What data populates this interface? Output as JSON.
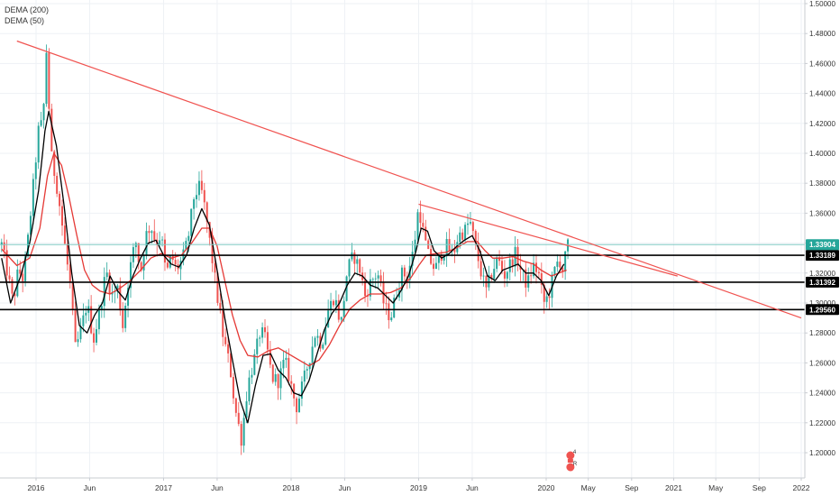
{
  "legend": [
    {
      "label": "DEMA (200)",
      "color": "#000000"
    },
    {
      "label": "DEMA (50)",
      "color": "#e53935"
    }
  ],
  "chart_data": {
    "type": "candlestick",
    "y_axis": {
      "min": 1.18,
      "max": 1.5,
      "ticks": [
        1.2,
        1.22,
        1.24,
        1.26,
        1.28,
        1.3,
        1.32,
        1.34,
        1.36,
        1.38,
        1.4,
        1.42,
        1.44,
        1.46,
        1.48,
        1.5
      ],
      "tick_labels": [
        "1.20000",
        "1.22000",
        "1.24000",
        "1.26000",
        "1.28000",
        "1.30000",
        "1.32000",
        "1.34000",
        "1.36000",
        "1.38000",
        "1.40000",
        "1.42000",
        "1.44000",
        "1.46000",
        "1.48000",
        "1.50000"
      ],
      "side": "right"
    },
    "x_axis": {
      "ticks": [
        {
          "label": "2016",
          "t": 2016.0
        },
        {
          "label": "Jun",
          "t": 2016.42
        },
        {
          "label": "2017",
          "t": 2017.0
        },
        {
          "label": "Jun",
          "t": 2017.42
        },
        {
          "label": "2018",
          "t": 2018.0
        },
        {
          "label": "Jun",
          "t": 2018.42
        },
        {
          "label": "2019",
          "t": 2019.0
        },
        {
          "label": "Jun",
          "t": 2019.42
        },
        {
          "label": "2020",
          "t": 2020.0
        },
        {
          "label": "May",
          "t": 2020.33
        },
        {
          "label": "Sep",
          "t": 2020.67
        },
        {
          "label": "2021",
          "t": 2021.0
        },
        {
          "label": "May",
          "t": 2021.33
        },
        {
          "label": "Sep",
          "t": 2021.67
        },
        {
          "label": "2022",
          "t": 2022.0
        }
      ],
      "range": [
        2015.73,
        2022.05
      ]
    },
    "price_path": [
      [
        2015.73,
        1.339
      ],
      [
        2015.78,
        1.318
      ],
      [
        2015.82,
        1.3
      ],
      [
        2015.86,
        1.322
      ],
      [
        2015.9,
        1.316
      ],
      [
        2015.94,
        1.345
      ],
      [
        2015.98,
        1.38
      ],
      [
        2016.03,
        1.425
      ],
      [
        2016.05,
        1.412
      ],
      [
        2016.08,
        1.47
      ],
      [
        2016.12,
        1.398
      ],
      [
        2016.17,
        1.375
      ],
      [
        2016.22,
        1.342
      ],
      [
        2016.27,
        1.31
      ],
      [
        2016.31,
        1.268
      ],
      [
        2016.36,
        1.285
      ],
      [
        2016.4,
        1.3
      ],
      [
        2016.45,
        1.275
      ],
      [
        2016.5,
        1.295
      ],
      [
        2016.55,
        1.322
      ],
      [
        2016.59,
        1.305
      ],
      [
        2016.64,
        1.31
      ],
      [
        2016.68,
        1.285
      ],
      [
        2016.73,
        1.32
      ],
      [
        2016.78,
        1.342
      ],
      [
        2016.82,
        1.32
      ],
      [
        2016.86,
        1.345
      ],
      [
        2016.9,
        1.352
      ],
      [
        2016.94,
        1.34
      ],
      [
        2016.98,
        1.346
      ],
      [
        2017.02,
        1.318
      ],
      [
        2017.06,
        1.332
      ],
      [
        2017.1,
        1.322
      ],
      [
        2017.15,
        1.33
      ],
      [
        2017.19,
        1.342
      ],
      [
        2017.24,
        1.372
      ],
      [
        2017.29,
        1.378
      ],
      [
        2017.33,
        1.36
      ],
      [
        2017.38,
        1.33
      ],
      [
        2017.42,
        1.305
      ],
      [
        2017.47,
        1.276
      ],
      [
        2017.52,
        1.258
      ],
      [
        2017.56,
        1.23
      ],
      [
        2017.61,
        1.209
      ],
      [
        2017.66,
        1.245
      ],
      [
        2017.71,
        1.262
      ],
      [
        2017.76,
        1.282
      ],
      [
        2017.8,
        1.275
      ],
      [
        2017.85,
        1.25
      ],
      [
        2017.9,
        1.248
      ],
      [
        2017.95,
        1.262
      ],
      [
        2018.0,
        1.245
      ],
      [
        2018.04,
        1.23
      ],
      [
        2018.09,
        1.245
      ],
      [
        2018.14,
        1.262
      ],
      [
        2018.19,
        1.28
      ],
      [
        2018.24,
        1.272
      ],
      [
        2018.29,
        1.295
      ],
      [
        2018.34,
        1.305
      ],
      [
        2018.39,
        1.285
      ],
      [
        2018.44,
        1.322
      ],
      [
        2018.49,
        1.332
      ],
      [
        2018.54,
        1.322
      ],
      [
        2018.58,
        1.305
      ],
      [
        2018.63,
        1.315
      ],
      [
        2018.68,
        1.32
      ],
      [
        2018.73,
        1.298
      ],
      [
        2018.78,
        1.29
      ],
      [
        2018.82,
        1.305
      ],
      [
        2018.87,
        1.32
      ],
      [
        2018.91,
        1.318
      ],
      [
        2018.96,
        1.335
      ],
      [
        2019.0,
        1.365
      ],
      [
        2019.04,
        1.345
      ],
      [
        2019.08,
        1.33
      ],
      [
        2019.13,
        1.322
      ],
      [
        2019.17,
        1.332
      ],
      [
        2019.22,
        1.338
      ],
      [
        2019.27,
        1.332
      ],
      [
        2019.31,
        1.345
      ],
      [
        2019.36,
        1.348
      ],
      [
        2019.4,
        1.355
      ],
      [
        2019.44,
        1.34
      ],
      [
        2019.49,
        1.32
      ],
      [
        2019.53,
        1.308
      ],
      [
        2019.58,
        1.322
      ],
      [
        2019.62,
        1.33
      ],
      [
        2019.67,
        1.318
      ],
      [
        2019.71,
        1.325
      ],
      [
        2019.76,
        1.333
      ],
      [
        2019.8,
        1.322
      ],
      [
        2019.85,
        1.312
      ],
      [
        2019.9,
        1.325
      ],
      [
        2019.94,
        1.32
      ],
      [
        2019.98,
        1.3
      ],
      [
        2020.02,
        1.305
      ],
      [
        2020.06,
        1.32
      ],
      [
        2020.1,
        1.33
      ],
      [
        2020.13,
        1.322
      ],
      [
        2020.17,
        1.339
      ]
    ],
    "dema_200": [
      [
        2015.73,
        1.33
      ],
      [
        2015.8,
        1.3
      ],
      [
        2015.88,
        1.318
      ],
      [
        2015.95,
        1.34
      ],
      [
        2016.02,
        1.375
      ],
      [
        2016.07,
        1.415
      ],
      [
        2016.1,
        1.428
      ],
      [
        2016.16,
        1.405
      ],
      [
        2016.22,
        1.365
      ],
      [
        2016.28,
        1.32
      ],
      [
        2016.34,
        1.285
      ],
      [
        2016.4,
        1.28
      ],
      [
        2016.46,
        1.292
      ],
      [
        2016.52,
        1.3
      ],
      [
        2016.58,
        1.318
      ],
      [
        2016.64,
        1.308
      ],
      [
        2016.7,
        1.302
      ],
      [
        2016.76,
        1.318
      ],
      [
        2016.82,
        1.33
      ],
      [
        2016.88,
        1.34
      ],
      [
        2016.94,
        1.342
      ],
      [
        2017.0,
        1.332
      ],
      [
        2017.06,
        1.326
      ],
      [
        2017.12,
        1.324
      ],
      [
        2017.18,
        1.332
      ],
      [
        2017.24,
        1.35
      ],
      [
        2017.3,
        1.363
      ],
      [
        2017.36,
        1.352
      ],
      [
        2017.42,
        1.322
      ],
      [
        2017.48,
        1.29
      ],
      [
        2017.54,
        1.262
      ],
      [
        2017.6,
        1.235
      ],
      [
        2017.66,
        1.22
      ],
      [
        2017.72,
        1.245
      ],
      [
        2017.78,
        1.265
      ],
      [
        2017.84,
        1.266
      ],
      [
        2017.9,
        1.255
      ],
      [
        2017.96,
        1.25
      ],
      [
        2018.02,
        1.24
      ],
      [
        2018.08,
        1.238
      ],
      [
        2018.14,
        1.248
      ],
      [
        2018.2,
        1.265
      ],
      [
        2018.26,
        1.282
      ],
      [
        2018.32,
        1.293
      ],
      [
        2018.38,
        1.3
      ],
      [
        2018.44,
        1.312
      ],
      [
        2018.5,
        1.32
      ],
      [
        2018.56,
        1.318
      ],
      [
        2018.62,
        1.312
      ],
      [
        2018.68,
        1.31
      ],
      [
        2018.74,
        1.305
      ],
      [
        2018.8,
        1.3
      ],
      [
        2018.86,
        1.308
      ],
      [
        2018.92,
        1.318
      ],
      [
        2018.98,
        1.335
      ],
      [
        2019.02,
        1.35
      ],
      [
        2019.07,
        1.348
      ],
      [
        2019.12,
        1.335
      ],
      [
        2019.18,
        1.33
      ],
      [
        2019.24,
        1.333
      ],
      [
        2019.3,
        1.338
      ],
      [
        2019.36,
        1.342
      ],
      [
        2019.42,
        1.345
      ],
      [
        2019.48,
        1.335
      ],
      [
        2019.54,
        1.318
      ],
      [
        2019.6,
        1.315
      ],
      [
        2019.66,
        1.322
      ],
      [
        2019.72,
        1.324
      ],
      [
        2019.78,
        1.326
      ],
      [
        2019.84,
        1.32
      ],
      [
        2019.9,
        1.32
      ],
      [
        2019.96,
        1.315
      ],
      [
        2020.02,
        1.305
      ],
      [
        2020.08,
        1.318
      ],
      [
        2020.14,
        1.326
      ]
    ],
    "dema_50": [
      [
        2015.73,
        1.336
      ],
      [
        2015.85,
        1.325
      ],
      [
        2015.95,
        1.33
      ],
      [
        2016.03,
        1.35
      ],
      [
        2016.09,
        1.385
      ],
      [
        2016.14,
        1.4
      ],
      [
        2016.2,
        1.392
      ],
      [
        2016.26,
        1.37
      ],
      [
        2016.32,
        1.345
      ],
      [
        2016.38,
        1.322
      ],
      [
        2016.44,
        1.312
      ],
      [
        2016.5,
        1.308
      ],
      [
        2016.58,
        1.306
      ],
      [
        2016.66,
        1.31
      ],
      [
        2016.74,
        1.315
      ],
      [
        2016.82,
        1.322
      ],
      [
        2016.9,
        1.33
      ],
      [
        2016.98,
        1.333
      ],
      [
        2017.06,
        1.33
      ],
      [
        2017.14,
        1.332
      ],
      [
        2017.22,
        1.34
      ],
      [
        2017.3,
        1.35
      ],
      [
        2017.36,
        1.35
      ],
      [
        2017.42,
        1.338
      ],
      [
        2017.48,
        1.315
      ],
      [
        2017.54,
        1.292
      ],
      [
        2017.6,
        1.275
      ],
      [
        2017.66,
        1.265
      ],
      [
        2017.74,
        1.264
      ],
      [
        2017.82,
        1.268
      ],
      [
        2017.9,
        1.27
      ],
      [
        2017.98,
        1.266
      ],
      [
        2018.06,
        1.262
      ],
      [
        2018.14,
        1.258
      ],
      [
        2018.22,
        1.262
      ],
      [
        2018.3,
        1.272
      ],
      [
        2018.38,
        1.285
      ],
      [
        2018.46,
        1.296
      ],
      [
        2018.54,
        1.302
      ],
      [
        2018.62,
        1.306
      ],
      [
        2018.7,
        1.306
      ],
      [
        2018.78,
        1.307
      ],
      [
        2018.86,
        1.31
      ],
      [
        2018.94,
        1.317
      ],
      [
        2019.0,
        1.325
      ],
      [
        2019.06,
        1.332
      ],
      [
        2019.14,
        1.333
      ],
      [
        2019.22,
        1.334
      ],
      [
        2019.3,
        1.337
      ],
      [
        2019.38,
        1.341
      ],
      [
        2019.46,
        1.341
      ],
      [
        2019.52,
        1.335
      ],
      [
        2019.58,
        1.33
      ],
      [
        2019.66,
        1.33
      ],
      [
        2019.74,
        1.331
      ],
      [
        2019.82,
        1.328
      ],
      [
        2019.9,
        1.326
      ],
      [
        2019.96,
        1.322
      ],
      [
        2020.04,
        1.318
      ],
      [
        2020.1,
        1.32
      ],
      [
        2020.16,
        1.322
      ]
    ],
    "trendlines": [
      {
        "name": "long-term-downtrend",
        "color": "#f05350",
        "from": [
          2015.85,
          1.475
        ],
        "to": [
          2022.0,
          1.29
        ]
      },
      {
        "name": "short-term-downtrend",
        "color": "#f05350",
        "from": [
          2019.0,
          1.366
        ],
        "to": [
          2021.03,
          1.318
        ]
      }
    ],
    "horizontal_levels": [
      {
        "value": 1.33189,
        "label": "1.33189",
        "color": "#000000"
      },
      {
        "value": 1.31392,
        "label": "1.31392",
        "color": "#000000"
      },
      {
        "value": 1.2956,
        "label": "1.29560",
        "color": "#000000"
      }
    ],
    "current_price": {
      "value": 1.33904,
      "label": "1.33904",
      "color": "#26a69a"
    },
    "event_marker": {
      "t": 2020.19,
      "symbols": [
        "4",
        "R"
      ]
    }
  }
}
